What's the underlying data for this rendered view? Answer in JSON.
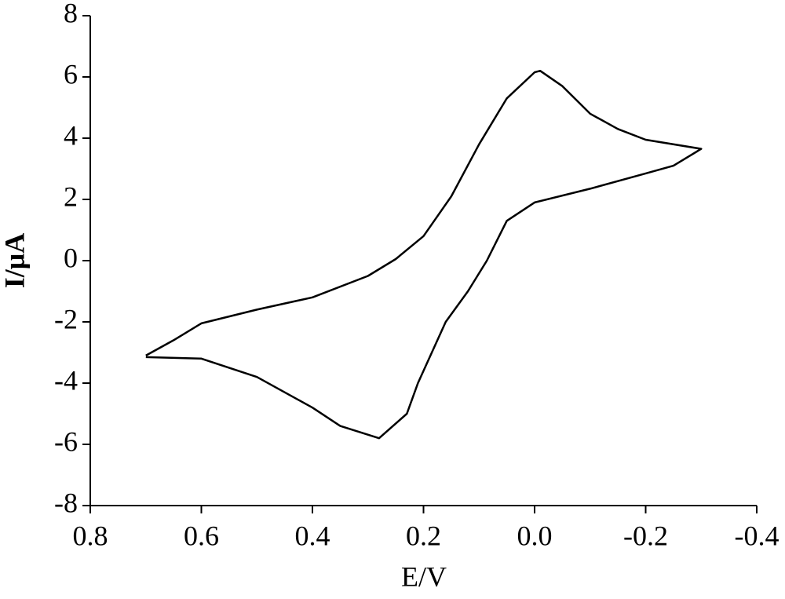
{
  "chart_data": {
    "type": "line",
    "x_label": "E/V",
    "y_label": "I/μA",
    "xlim": [
      0.8,
      -0.4
    ],
    "ylim": [
      -8,
      8
    ],
    "xticks": [
      0.8,
      0.6,
      0.4,
      0.2,
      {
        "value": 0,
        "label": "0.0"
      },
      -0.2,
      -0.4
    ],
    "yticks": [
      -8,
      -6,
      -4,
      -2,
      0,
      2,
      4,
      6,
      8
    ],
    "color": "#000000",
    "x": [
      0.7,
      0.65,
      0.6,
      0.5,
      0.4,
      0.3,
      0.25,
      0.2,
      0.15,
      0.1,
      0.05,
      0.0,
      -0.01,
      -0.05,
      -0.1,
      -0.15,
      -0.2,
      -0.3,
      -0.25,
      -0.2,
      -0.1,
      0.0,
      0.05,
      0.086,
      0.12,
      0.16,
      0.21,
      0.23,
      0.28,
      0.35,
      0.4,
      0.5,
      0.6,
      0.7
    ],
    "y": [
      -3.1,
      -2.6,
      -2.05,
      -1.6,
      -1.2,
      -0.5,
      0.05,
      0.8,
      2.1,
      3.8,
      5.3,
      6.15,
      6.2,
      5.7,
      4.8,
      4.3,
      3.95,
      3.65,
      3.1,
      2.85,
      2.35,
      1.9,
      1.3,
      0,
      -1.0,
      -2,
      -4,
      -5,
      -5.8,
      -5.4,
      -4.8,
      -3.8,
      -3.2,
      -3.15
    ]
  }
}
